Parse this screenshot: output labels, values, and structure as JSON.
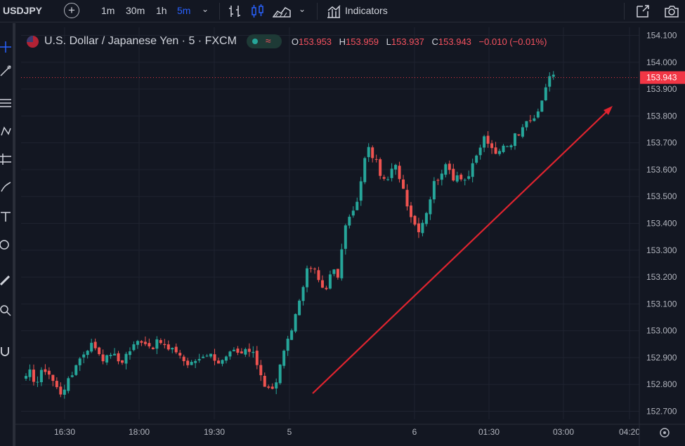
{
  "toolbar": {
    "symbol": "USDJPY",
    "intervals": [
      "1m",
      "30m",
      "1h",
      "5m"
    ],
    "active_interval": "5m",
    "indicators_label": "Indicators"
  },
  "legend": {
    "title": "U.S. Dollar / Japanese Yen · 5 · FXCM",
    "open_label": "O",
    "open": "153.953",
    "high_label": "H",
    "high": "153.959",
    "low_label": "L",
    "low": "153.937",
    "close_label": "C",
    "close": "153.943",
    "change": "−0.010 (−0.01%)"
  },
  "colors": {
    "background": "#131722",
    "up": "#26a69a",
    "down": "#ef5350",
    "arrow": "#e0242f",
    "grid": "#1f2330",
    "last_price_badge": "#f23645"
  },
  "icons": [
    "plus-circle-icon",
    "bar-chart-icon",
    "candle-chart-icon",
    "area-chart-icon",
    "indicators-icon",
    "fullscreen-icon",
    "camera-icon",
    "gear-icon"
  ],
  "chart_data": {
    "type": "candlestick",
    "y_axis_ticks": [
      "154.100",
      "154.000",
      "153.900",
      "153.800",
      "153.700",
      "153.600",
      "153.500",
      "153.400",
      "153.300",
      "153.200",
      "153.100",
      "153.000",
      "152.900",
      "152.800",
      "152.700"
    ],
    "ylim": [
      152.67,
      154.13
    ],
    "x_axis_ticks": [
      "16:30",
      "18:00",
      "19:30",
      "5",
      "6",
      "01:30",
      "03:00",
      "04:20"
    ],
    "last_price": "153.943",
    "annotation": {
      "type": "arrow",
      "color": "#e0242f",
      "from": [
        152.72,
        "5"
      ],
      "to": [
        153.81,
        "03:00"
      ]
    },
    "close_path": [
      152.82,
      152.85,
      152.8,
      152.84,
      152.86,
      152.83,
      152.79,
      152.77,
      152.8,
      152.82,
      152.88,
      152.9,
      152.93,
      152.95,
      152.94,
      152.91,
      152.89,
      152.92,
      152.9,
      152.88,
      152.91,
      152.93,
      152.95,
      152.97,
      152.96,
      152.94,
      152.95,
      152.96,
      152.94,
      152.92,
      152.93,
      152.91,
      152.88,
      152.87,
      152.89,
      152.9,
      152.92,
      152.91,
      152.9,
      152.88,
      152.89,
      152.91,
      152.92,
      152.9,
      152.93,
      152.92,
      152.9,
      152.85,
      152.8,
      152.79,
      152.77,
      152.88,
      152.92,
      152.98,
      153.05,
      153.12,
      153.2,
      153.24,
      153.22,
      153.18,
      153.15,
      153.2,
      153.22,
      153.2,
      153.4,
      153.42,
      153.45,
      153.5,
      153.65,
      153.68,
      153.64,
      153.6,
      153.55,
      153.57,
      153.62,
      153.58,
      153.52,
      153.45,
      153.4,
      153.38,
      153.42,
      153.48,
      153.55,
      153.58,
      153.61,
      153.6,
      153.57,
      153.59,
      153.56,
      153.58,
      153.62,
      153.67,
      153.72,
      153.7,
      153.65,
      153.66,
      153.7,
      153.69,
      153.72,
      153.74,
      153.78,
      153.8,
      153.77,
      153.82,
      153.88,
      153.95,
      153.943
    ]
  }
}
